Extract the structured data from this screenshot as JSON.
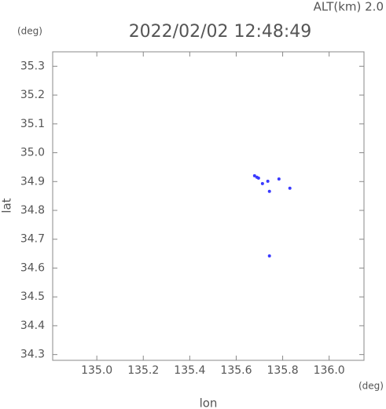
{
  "chart_data": {
    "type": "scatter",
    "annotation": "ALT(km) 2.0",
    "title": "2022/02/02 12:48:49",
    "y_unit": "(deg)",
    "x_unit": "(deg)",
    "ylabel": "lat",
    "xlabel": "lon",
    "x": [
      135.679,
      135.689,
      135.696,
      135.713,
      135.736,
      135.784,
      135.743,
      135.831,
      135.743
    ],
    "values": [
      34.92,
      34.915,
      34.912,
      34.893,
      34.901,
      34.909,
      34.866,
      34.877,
      34.642
    ],
    "color": "#3a3aff",
    "xlim": [
      134.81,
      136.15
    ],
    "ylim": [
      34.28,
      35.35
    ],
    "xticks": [
      {
        "value": 135.0,
        "label": "135.0"
      },
      135.2,
      135.4,
      135.6,
      135.8,
      {
        "value": 136.0,
        "label": "136.0"
      }
    ],
    "yticks": [
      34.3,
      34.4,
      34.5,
      34.6,
      34.7,
      34.8,
      34.9,
      {
        "value": 35.0,
        "label": "35.0"
      },
      35.1,
      35.2,
      35.3
    ]
  }
}
